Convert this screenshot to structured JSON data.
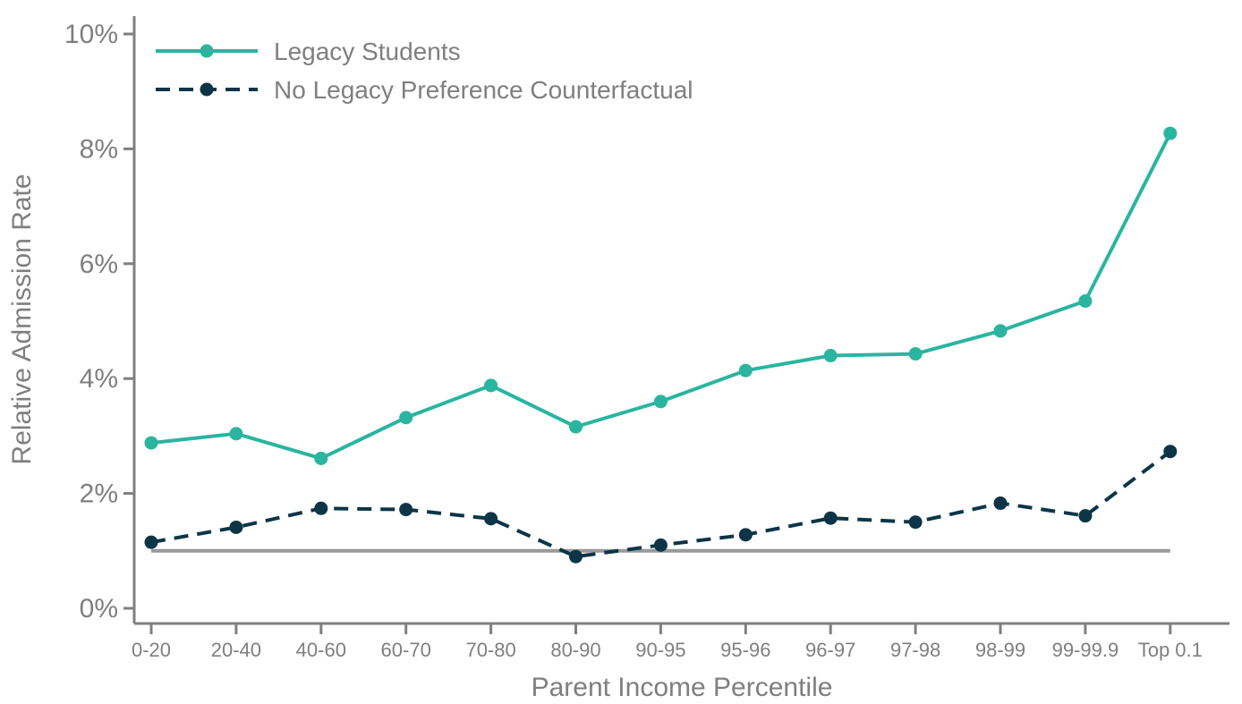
{
  "chart_data": {
    "type": "line",
    "title": "",
    "xlabel": "Parent Income Percentile",
    "ylabel": "Relative Admission Rate",
    "categories": [
      "0-20",
      "20-40",
      "40-60",
      "60-70",
      "70-80",
      "80-90",
      "90-95",
      "95-96",
      "96-97",
      "97-98",
      "98-99",
      "99-99.9",
      "Top 0.1"
    ],
    "ylim": [
      0,
      10
    ],
    "y_ticks": [
      0,
      2,
      4,
      6,
      8,
      10
    ],
    "y_tick_labels": [
      "0%",
      "2%",
      "4%",
      "6%",
      "8%",
      "10%"
    ],
    "y_unit": "%",
    "grid": false,
    "legend_position": "top-left",
    "reference_line": {
      "y": 1,
      "color": "#999999"
    },
    "series": [
      {
        "name": "Legacy Students",
        "style": "solid",
        "color": "#2ab5a0",
        "values": [
          2.88,
          3.04,
          2.61,
          3.32,
          3.88,
          3.16,
          3.6,
          4.14,
          4.4,
          4.43,
          4.83,
          5.35,
          8.27
        ]
      },
      {
        "name": "No Legacy Preference Counterfactual",
        "style": "dashed",
        "color": "#0d3547",
        "values": [
          1.15,
          1.41,
          1.74,
          1.72,
          1.56,
          0.9,
          1.1,
          1.28,
          1.57,
          1.5,
          1.83,
          1.61,
          2.73
        ]
      }
    ]
  }
}
